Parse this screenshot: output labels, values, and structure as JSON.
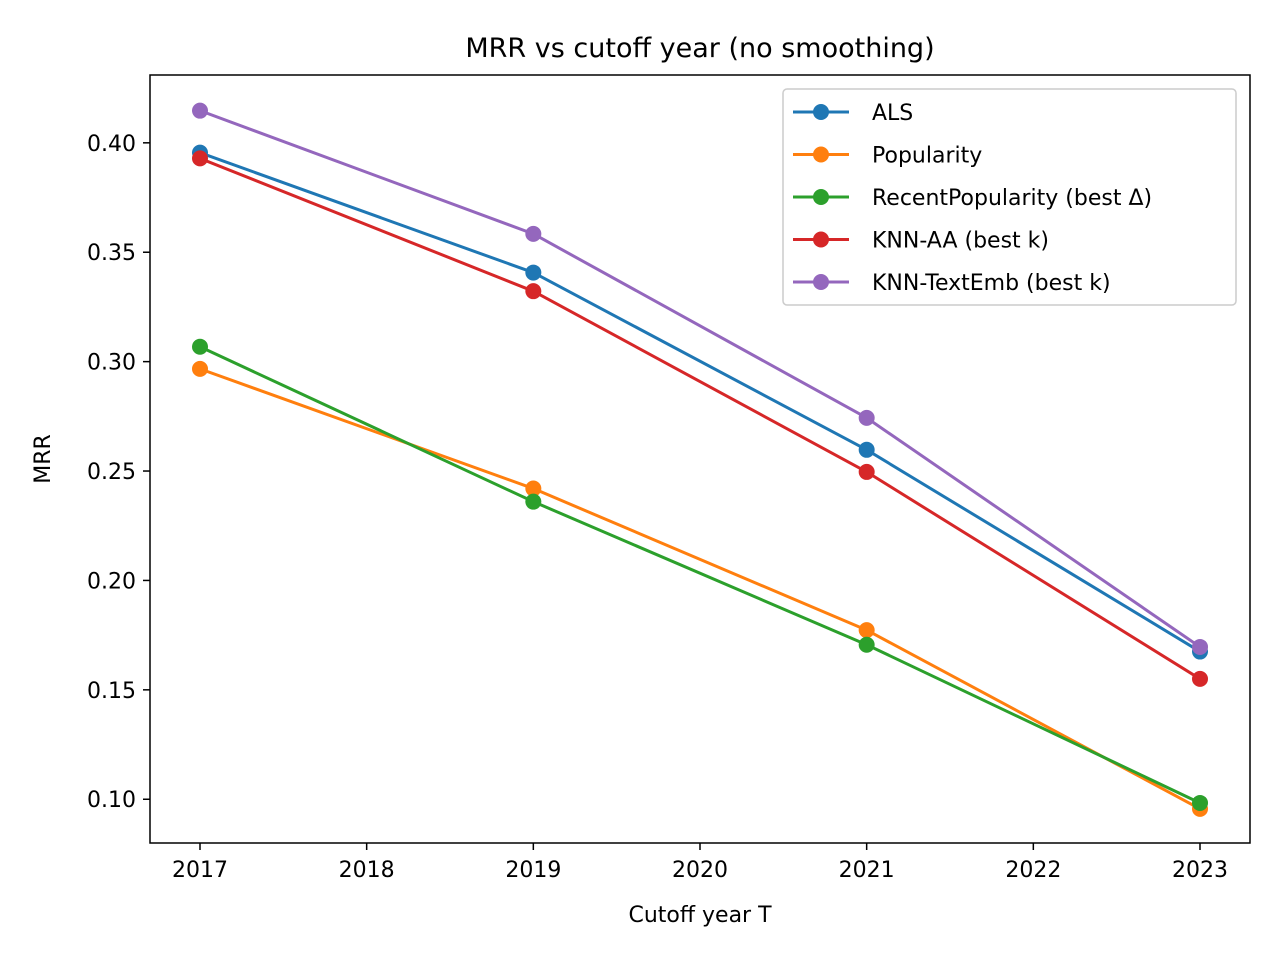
{
  "chart_data": {
    "type": "line",
    "title": "MRR vs cutoff year (no smoothing)",
    "xlabel": "Cutoff year T",
    "ylabel": "MRR",
    "x": [
      2017,
      2019,
      2021,
      2023
    ],
    "xlim": [
      2016.7,
      2023.3
    ],
    "ylim": [
      0.08,
      0.431
    ],
    "xticks": [
      2017,
      2018,
      2019,
      2020,
      2021,
      2022,
      2023
    ],
    "yticks": [
      0.1,
      0.15,
      0.2,
      0.25,
      0.3,
      0.35,
      0.4
    ],
    "ytick_labels": [
      "0.10",
      "0.15",
      "0.20",
      "0.25",
      "0.30",
      "0.35",
      "0.40"
    ],
    "grid": false,
    "legend_position": "top-right",
    "series": [
      {
        "name": "ALS",
        "color": "#1f77b4",
        "values": [
          0.3955,
          0.3407,
          0.2597,
          0.1675
        ]
      },
      {
        "name": "Popularity",
        "color": "#ff7f0e",
        "values": [
          0.2967,
          0.242,
          0.1773,
          0.0956
        ]
      },
      {
        "name": "RecentPopularity (best Δ)",
        "color": "#2ca02c",
        "values": [
          0.3068,
          0.236,
          0.1706,
          0.0983
        ]
      },
      {
        "name": "KNN-AA (best k)",
        "color": "#d62728",
        "values": [
          0.3929,
          0.3322,
          0.2496,
          0.155
        ]
      },
      {
        "name": "KNN-TextEmb (best k)",
        "color": "#9467bd",
        "values": [
          0.4147,
          0.3584,
          0.2743,
          0.1696
        ]
      }
    ]
  }
}
